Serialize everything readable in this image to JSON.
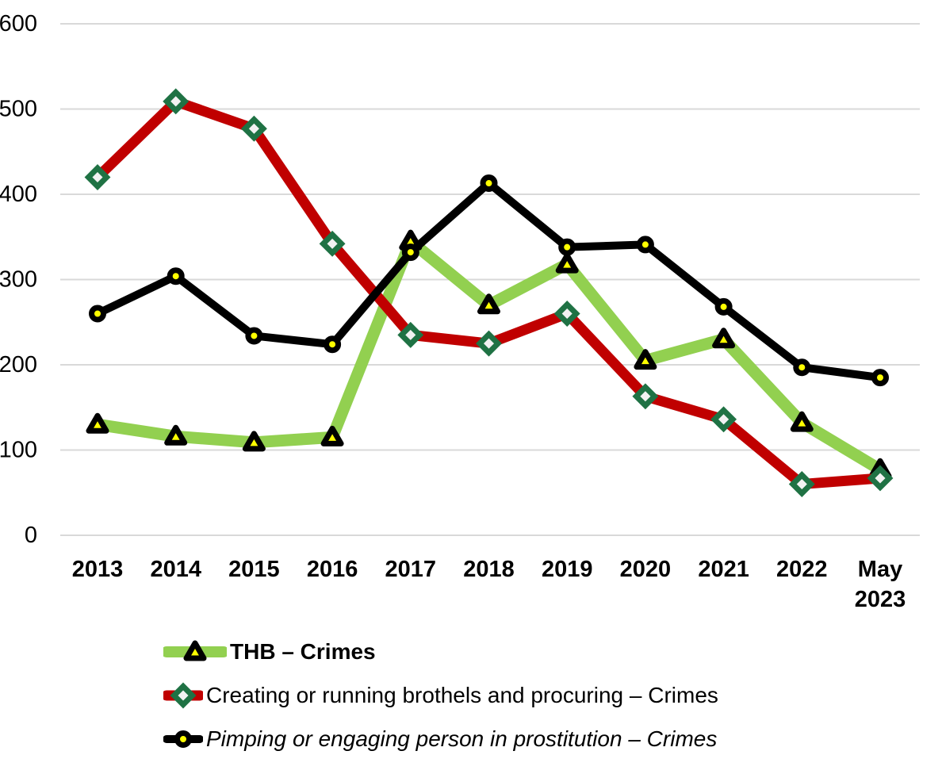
{
  "chart_data": {
    "type": "line",
    "categories": [
      "2013",
      "2014",
      "2015",
      "2016",
      "2017",
      "2018",
      "2019",
      "2020",
      "2021",
      "2022",
      "May 2023"
    ],
    "y_ticks": [
      0,
      100,
      200,
      300,
      400,
      500,
      600
    ],
    "ylim": [
      0,
      600
    ],
    "grid": true,
    "gridline_color": "#D9D9D9",
    "tick_color": "#000000",
    "legend_position": "bottom-left",
    "series": [
      {
        "name": "THB – Crimes",
        "values": [
          130,
          116,
          109,
          115,
          345,
          270,
          318,
          205,
          230,
          132,
          77
        ],
        "color": "#92D050",
        "line_width": 15,
        "marker": "triangle",
        "marker_fill": "#FFFF00",
        "marker_stroke": "#000000",
        "label_style": "bold"
      },
      {
        "name": "Creating or running brothels and procuring – Crimes",
        "values": [
          420,
          509,
          477,
          342,
          235,
          225,
          260,
          163,
          136,
          60,
          67
        ],
        "color": "#C00000",
        "line_width": 13,
        "marker": "diamond",
        "marker_fill": "#F2F2F2",
        "marker_stroke": "#1F7244",
        "label_style": "normal"
      },
      {
        "name": "Pimping or engaging person in prostitution – Crimes",
        "values": [
          260,
          304,
          234,
          224,
          332,
          413,
          338,
          341,
          268,
          197,
          185
        ],
        "color": "#000000",
        "line_width": 10,
        "marker": "circle",
        "marker_fill": "#FFFF00",
        "marker_stroke": "#000000",
        "label_style": "italic"
      }
    ]
  }
}
